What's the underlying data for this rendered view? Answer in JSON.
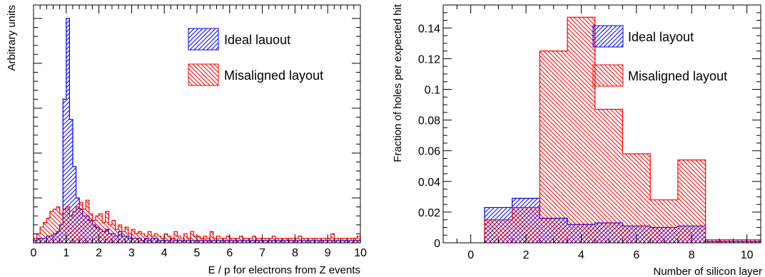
{
  "chart_data": [
    {
      "type": "bar",
      "histogram": true,
      "xlabel": "E / p for electrons from Z events",
      "ylabel": "Arbitrary units",
      "xlim": [
        0,
        10
      ],
      "xticks": [
        "0",
        "1",
        "2",
        "3",
        "4",
        "5",
        "6",
        "7",
        "8",
        "9",
        "10"
      ],
      "y_tick_labels_shown": false,
      "ylim": [
        0,
        1.06
      ],
      "bin_width": 0.1,
      "legend_position": "top-right",
      "series": [
        {
          "name": "Ideal lauout",
          "color": "#0000ff",
          "hatch": "diagonal-forward",
          "values": [
            0.01,
            0.02,
            0.02,
            0.02,
            0.03,
            0.03,
            0.04,
            0.05,
            0.08,
            0.64,
            1.0,
            0.55,
            0.34,
            0.2,
            0.15,
            0.12,
            0.12,
            0.1,
            0.08,
            0.07,
            0.06,
            0.05,
            0.06,
            0.04,
            0.04,
            0.03,
            0.05,
            0.03,
            0.03,
            0.02,
            0.02,
            0.02,
            0.02,
            0.01,
            0.02,
            0.01,
            0.02,
            0.02,
            0.01,
            0.01,
            0.01,
            0.01,
            0.02,
            0.01,
            0.01,
            0.01,
            0.01,
            0.01,
            0.01,
            0.01,
            0.01,
            0.01,
            0.01,
            0.01,
            0.01,
            0.01,
            0.01,
            0.01,
            0.01,
            0.01,
            0.01,
            0.01,
            0.01,
            0.01,
            0.01,
            0.01,
            0.01,
            0.01,
            0.01,
            0.01,
            0.01,
            0.01,
            0.01,
            0.01,
            0.01,
            0.01,
            0.01,
            0.01,
            0.01,
            0.01,
            0.01,
            0.01,
            0.01,
            0.01,
            0.01,
            0.01,
            0.01,
            0.01,
            0.01,
            0.01,
            0.01,
            0.01,
            0.01,
            0.01,
            0.01,
            0.01,
            0.01,
            0.01,
            0.01,
            0.01
          ]
        },
        {
          "name": "Misaligned layout",
          "color": "#ff0000",
          "hatch": "diagonal-backward",
          "values": [
            0.02,
            0.04,
            0.07,
            0.09,
            0.11,
            0.14,
            0.15,
            0.16,
            0.13,
            0.15,
            0.16,
            0.12,
            0.14,
            0.16,
            0.18,
            0.15,
            0.19,
            0.13,
            0.1,
            0.12,
            0.13,
            0.09,
            0.14,
            0.08,
            0.1,
            0.06,
            0.08,
            0.05,
            0.07,
            0.04,
            0.06,
            0.04,
            0.05,
            0.04,
            0.03,
            0.05,
            0.03,
            0.04,
            0.03,
            0.02,
            0.04,
            0.03,
            0.02,
            0.05,
            0.03,
            0.02,
            0.04,
            0.02,
            0.05,
            0.03,
            0.03,
            0.02,
            0.03,
            0.02,
            0.05,
            0.02,
            0.03,
            0.02,
            0.02,
            0.03,
            0.02,
            0.02,
            0.02,
            0.03,
            0.02,
            0.02,
            0.02,
            0.03,
            0.02,
            0.02,
            0.02,
            0.02,
            0.02,
            0.03,
            0.02,
            0.02,
            0.02,
            0.02,
            0.02,
            0.02,
            0.02,
            0.03,
            0.02,
            0.02,
            0.02,
            0.02,
            0.02,
            0.02,
            0.02,
            0.02,
            0.02,
            0.04,
            0.02,
            0.02,
            0.02,
            0.02,
            0.02,
            0.02,
            0.02,
            0.03
          ]
        }
      ]
    },
    {
      "type": "bar",
      "histogram": true,
      "xlabel": "Number of silicon layer",
      "ylabel": "Fraction of holes per expected hit",
      "xlim": [
        -1,
        10.5
      ],
      "ylim": [
        0,
        0.155
      ],
      "xticks": [
        0,
        2,
        4,
        6,
        8,
        10
      ],
      "yticks": [
        0,
        0.02,
        0.04,
        0.06,
        0.08,
        0.1,
        0.12,
        0.14
      ],
      "ytick_labels": [
        "0",
        "0.02",
        "0.04",
        "0.06",
        "0.08",
        "0.1",
        "0.12",
        "0.14"
      ],
      "bin_edges": [
        0.5,
        1.5,
        2.5,
        3.5,
        4.5,
        5.5,
        6.5,
        7.5,
        8.5,
        10.5
      ],
      "legend_position": "top-right",
      "series": [
        {
          "name": "Ideal layout",
          "color": "#0000ff",
          "hatch": "diagonal-forward",
          "values": [
            0.023,
            0.029,
            0.016,
            0.012,
            0.013,
            0.011,
            0.01,
            0.011,
            0.001
          ]
        },
        {
          "name": "Misaligned layout",
          "color": "#ff0000",
          "hatch": "diagonal-backward",
          "values": [
            0.015,
            0.023,
            0.125,
            0.147,
            0.087,
            0.058,
            0.028,
            0.054,
            0.002
          ]
        }
      ]
    }
  ]
}
